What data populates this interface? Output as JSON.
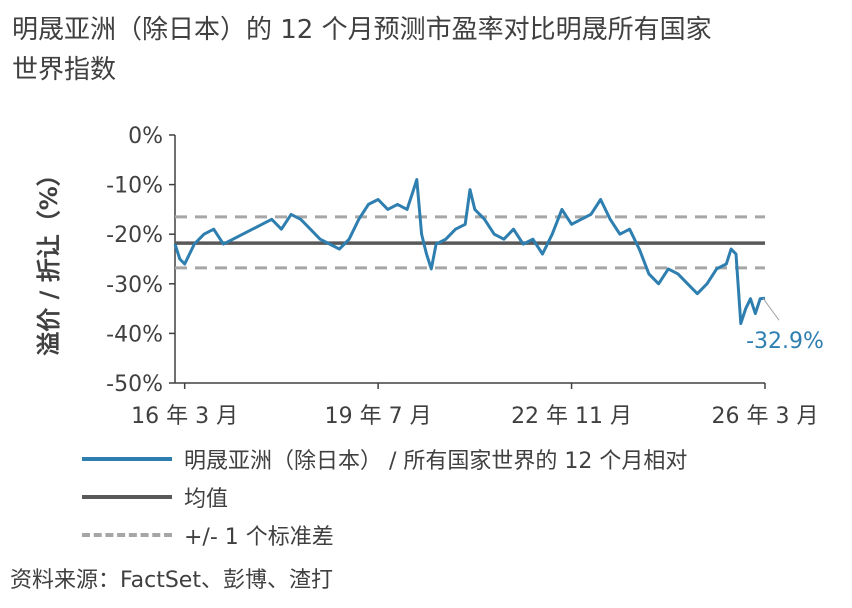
{
  "title": {
    "line1": "明晟亚洲（除日本）的 12 个月预测市盈率对比明晟所有国家",
    "line2": "世界指数"
  },
  "chart_data": {
    "type": "line",
    "ylabel": "溢价 / 折让（%）",
    "ylim": [
      -50,
      0
    ],
    "y_ticks": [
      0,
      -10,
      -20,
      -30,
      -40,
      -50
    ],
    "y_tick_labels": [
      "0%",
      "-10%",
      "-20%",
      "-30%",
      "-40%",
      "-50%"
    ],
    "x_range": [
      "2016-01",
      "2026-03"
    ],
    "x_ticks": [
      {
        "date": "2016-03",
        "label": "16 年 3 月"
      },
      {
        "date": "2019-07",
        "label": "19 年 7 月"
      },
      {
        "date": "2022-11",
        "label": "22 年 11 月"
      },
      {
        "date": "2026-03",
        "label": "26 年 3 月"
      }
    ],
    "grid": false,
    "legend_position": "bottom",
    "series": [
      {
        "name": "明晟亚洲（除日本） / 所有国家世界的 12 个月相对",
        "color": "#2e7fb0",
        "style": "solid",
        "points": [
          [
            "2016-01",
            -22
          ],
          [
            "2016-02",
            -25
          ],
          [
            "2016-03",
            -26
          ],
          [
            "2016-05",
            -22
          ],
          [
            "2016-07",
            -20
          ],
          [
            "2016-09",
            -19
          ],
          [
            "2016-11",
            -22
          ],
          [
            "2017-01",
            -21
          ],
          [
            "2017-03",
            -20
          ],
          [
            "2017-05",
            -19
          ],
          [
            "2017-07",
            -18
          ],
          [
            "2017-09",
            -17
          ],
          [
            "2017-11",
            -19
          ],
          [
            "2018-01",
            -16
          ],
          [
            "2018-03",
            -17
          ],
          [
            "2018-05",
            -19
          ],
          [
            "2018-07",
            -21
          ],
          [
            "2018-09",
            -22
          ],
          [
            "2018-11",
            -23
          ],
          [
            "2019-01",
            -21
          ],
          [
            "2019-03",
            -17
          ],
          [
            "2019-05",
            -14
          ],
          [
            "2019-07",
            -13
          ],
          [
            "2019-09",
            -15
          ],
          [
            "2019-11",
            -14
          ],
          [
            "2020-01",
            -15
          ],
          [
            "2020-02",
            -12
          ],
          [
            "2020-03",
            -9
          ],
          [
            "2020-04",
            -20
          ],
          [
            "2020-05",
            -24
          ],
          [
            "2020-06",
            -27
          ],
          [
            "2020-07",
            -22
          ],
          [
            "2020-09",
            -21
          ],
          [
            "2020-11",
            -19
          ],
          [
            "2021-01",
            -18
          ],
          [
            "2021-02",
            -11
          ],
          [
            "2021-03",
            -15
          ],
          [
            "2021-05",
            -17
          ],
          [
            "2021-07",
            -20
          ],
          [
            "2021-09",
            -21
          ],
          [
            "2021-11",
            -19
          ],
          [
            "2022-01",
            -22
          ],
          [
            "2022-03",
            -21
          ],
          [
            "2022-05",
            -24
          ],
          [
            "2022-07",
            -20
          ],
          [
            "2022-09",
            -15
          ],
          [
            "2022-11",
            -18
          ],
          [
            "2023-01",
            -17
          ],
          [
            "2023-03",
            -16
          ],
          [
            "2023-05",
            -13
          ],
          [
            "2023-07",
            -17
          ],
          [
            "2023-09",
            -20
          ],
          [
            "2023-11",
            -19
          ],
          [
            "2024-01",
            -23
          ],
          [
            "2024-03",
            -28
          ],
          [
            "2024-05",
            -30
          ],
          [
            "2024-07",
            -27
          ],
          [
            "2024-09",
            -28
          ],
          [
            "2024-11",
            -30
          ],
          [
            "2025-01",
            -32
          ],
          [
            "2025-03",
            -30
          ],
          [
            "2025-05",
            -27
          ],
          [
            "2025-07",
            -26
          ],
          [
            "2025-08",
            -23
          ],
          [
            "2025-09",
            -24
          ],
          [
            "2025-10",
            -38
          ],
          [
            "2025-11",
            -35
          ],
          [
            "2025-12",
            -33
          ],
          [
            "2026-01",
            -36
          ],
          [
            "2026-02",
            -33
          ],
          [
            "2026-03",
            -32.9
          ]
        ]
      },
      {
        "name": "均值",
        "color": "#595959",
        "style": "solid",
        "constant": -21.8
      },
      {
        "name": "+/- 1 个标准差",
        "color": "#a6a6a6",
        "style": "dashed",
        "constants": [
          -16.5,
          -26.8
        ]
      }
    ],
    "annotations": [
      {
        "text": "-32.9%",
        "at": [
          "2026-03",
          -32.9
        ],
        "color": "#2e7fb0"
      }
    ]
  },
  "legend": [
    {
      "label": "明晟亚洲（除日本） / 所有国家世界的 12 个月相对",
      "color": "#2e7fb0",
      "style": "solid"
    },
    {
      "label": "均值",
      "color": "#595959",
      "style": "solid"
    },
    {
      "label": "+/- 1 个标准差",
      "color": "#a6a6a6",
      "style": "dashed"
    }
  ],
  "source": "资料来源：FactSet、彭博、渣打"
}
